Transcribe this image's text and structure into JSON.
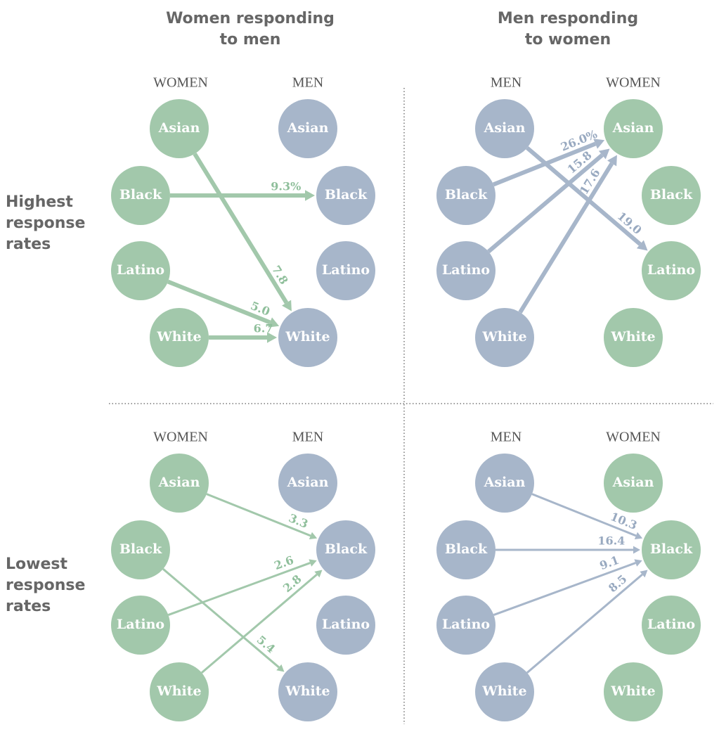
{
  "column_titles": [
    [
      "Women responding",
      "to men"
    ],
    [
      "Men responding",
      "to women"
    ]
  ],
  "row_labels": [
    [
      "Highest",
      "response",
      "rates"
    ],
    [
      "Lowest",
      "response",
      "rates"
    ]
  ],
  "panels": [
    {
      "left_header": "WOMEN",
      "right_header": "MEN",
      "left_nodes": [
        "Asian",
        "Black",
        "Latino",
        "White"
      ],
      "right_nodes": [
        "Asian",
        "Black",
        "Latino",
        "White"
      ],
      "edge_labels": [
        "9.3%",
        "7.8",
        "5.0",
        "6.7"
      ]
    },
    {
      "left_header": "MEN",
      "right_header": "WOMEN",
      "left_nodes": [
        "Asian",
        "Black",
        "Latino",
        "White"
      ],
      "right_nodes": [
        "Asian",
        "Black",
        "Latino",
        "White"
      ],
      "edge_labels": [
        "26.0%",
        "15.8",
        "17.6",
        "19.0"
      ]
    },
    {
      "left_header": "WOMEN",
      "right_header": "MEN",
      "left_nodes": [
        "Asian",
        "Black",
        "Latino",
        "White"
      ],
      "right_nodes": [
        "Asian",
        "Black",
        "Latino",
        "White"
      ],
      "edge_labels": [
        "3.3",
        "2.6",
        "2.8",
        "5.4"
      ]
    },
    {
      "left_header": "MEN",
      "right_header": "WOMEN",
      "left_nodes": [
        "Asian",
        "Black",
        "Latino",
        "White"
      ],
      "right_nodes": [
        "Asian",
        "Black",
        "Latino",
        "White"
      ],
      "edge_labels": [
        "10.3",
        "16.4",
        "9.1",
        "8.5"
      ]
    }
  ]
}
